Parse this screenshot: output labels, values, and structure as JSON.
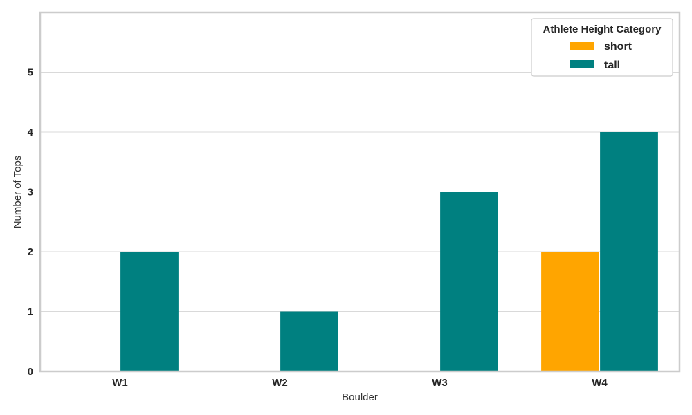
{
  "chart_data": {
    "type": "bar",
    "xlabel": "Boulder",
    "ylabel": "Number of Tops",
    "categories": [
      "W1",
      "W2",
      "W3",
      "W4"
    ],
    "ylim": [
      0,
      6
    ],
    "yticks": [
      0,
      1,
      2,
      3,
      4,
      5
    ],
    "grid": "horizontal",
    "legend": {
      "title": "Athlete Height Category",
      "placement": "top-right"
    },
    "series": [
      {
        "name": "short",
        "color": "#FFA500",
        "values": [
          0,
          0,
          0,
          2
        ]
      },
      {
        "name": "tall",
        "color": "#008080",
        "values": [
          2,
          1,
          3,
          4
        ]
      }
    ]
  }
}
